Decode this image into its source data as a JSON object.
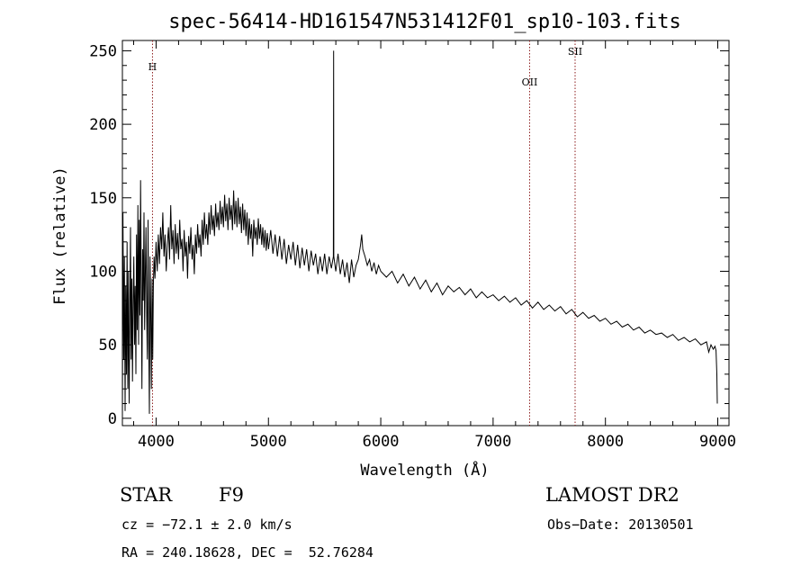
{
  "chart_data": {
    "type": "line",
    "title": "spec-56414-HD161547N531412F01_sp10-103.fits",
    "xlabel": "Wavelength (Å)",
    "ylabel": "Flux (relative)",
    "xlim": [
      3700,
      9100
    ],
    "ylim": [
      -5,
      257
    ],
    "x_ticks": [
      4000,
      5000,
      6000,
      7000,
      8000,
      9000
    ],
    "y_ticks": [
      0,
      50,
      100,
      150,
      200,
      250
    ],
    "grid": false,
    "legend": "none",
    "line_color": "#000000",
    "marker_color": "#8b1a1a",
    "spectrum": [
      [
        3700,
        0
      ],
      [
        3705,
        140
      ],
      [
        3712,
        40
      ],
      [
        3718,
        110
      ],
      [
        3724,
        5
      ],
      [
        3730,
        90
      ],
      [
        3736,
        30
      ],
      [
        3742,
        120
      ],
      [
        3748,
        20
      ],
      [
        3754,
        100
      ],
      [
        3760,
        10
      ],
      [
        3766,
        70
      ],
      [
        3772,
        130
      ],
      [
        3778,
        40
      ],
      [
        3784,
        95
      ],
      [
        3790,
        25
      ],
      [
        3796,
        80
      ],
      [
        3802,
        110
      ],
      [
        3808,
        50
      ],
      [
        3814,
        90
      ],
      [
        3820,
        30
      ],
      [
        3826,
        125
      ],
      [
        3832,
        60
      ],
      [
        3838,
        145
      ],
      [
        3844,
        50
      ],
      [
        3850,
        135
      ],
      [
        3856,
        70
      ],
      [
        3862,
        162
      ],
      [
        3868,
        90
      ],
      [
        3874,
        20
      ],
      [
        3880,
        115
      ],
      [
        3886,
        80
      ],
      [
        3892,
        140
      ],
      [
        3898,
        60
      ],
      [
        3904,
        100
      ],
      [
        3910,
        130
      ],
      [
        3916,
        70
      ],
      [
        3922,
        40
      ],
      [
        3928,
        135
      ],
      [
        3934,
        60
      ],
      [
        3940,
        3
      ],
      [
        3946,
        110
      ],
      [
        3952,
        70
      ],
      [
        3958,
        20
      ],
      [
        3964,
        95
      ],
      [
        3970,
        40
      ],
      [
        3976,
        90
      ],
      [
        3982,
        110
      ],
      [
        3990,
        95
      ],
      [
        4000,
        120
      ],
      [
        4010,
        100
      ],
      [
        4020,
        125
      ],
      [
        4030,
        105
      ],
      [
        4040,
        130
      ],
      [
        4050,
        115
      ],
      [
        4060,
        140
      ],
      [
        4070,
        110
      ],
      [
        4080,
        125
      ],
      [
        4090,
        100
      ],
      [
        4100,
        118
      ],
      [
        4110,
        130
      ],
      [
        4120,
        108
      ],
      [
        4130,
        145
      ],
      [
        4140,
        115
      ],
      [
        4150,
        128
      ],
      [
        4160,
        105
      ],
      [
        4170,
        132
      ],
      [
        4180,
        112
      ],
      [
        4190,
        126
      ],
      [
        4200,
        108
      ],
      [
        4210,
        135
      ],
      [
        4220,
        115
      ],
      [
        4230,
        122
      ],
      [
        4240,
        100
      ],
      [
        4250,
        128
      ],
      [
        4260,
        110
      ],
      [
        4270,
        120
      ],
      [
        4280,
        95
      ],
      [
        4290,
        124
      ],
      [
        4300,
        112
      ],
      [
        4310,
        130
      ],
      [
        4320,
        108
      ],
      [
        4330,
        118
      ],
      [
        4340,
        98
      ],
      [
        4350,
        125
      ],
      [
        4360,
        112
      ],
      [
        4370,
        132
      ],
      [
        4380,
        116
      ],
      [
        4390,
        125
      ],
      [
        4400,
        110
      ],
      [
        4410,
        135
      ],
      [
        4420,
        118
      ],
      [
        4430,
        140
      ],
      [
        4440,
        122
      ],
      [
        4450,
        132
      ],
      [
        4460,
        118
      ],
      [
        4470,
        140
      ],
      [
        4480,
        125
      ],
      [
        4490,
        145
      ],
      [
        4500,
        128
      ],
      [
        4510,
        138
      ],
      [
        4520,
        124
      ],
      [
        4530,
        146
      ],
      [
        4540,
        130
      ],
      [
        4550,
        140
      ],
      [
        4560,
        128
      ],
      [
        4570,
        148
      ],
      [
        4580,
        132
      ],
      [
        4590,
        144
      ],
      [
        4600,
        130
      ],
      [
        4610,
        152
      ],
      [
        4620,
        134
      ],
      [
        4630,
        146
      ],
      [
        4640,
        128
      ],
      [
        4650,
        150
      ],
      [
        4660,
        135
      ],
      [
        4670,
        145
      ],
      [
        4680,
        128
      ],
      [
        4690,
        155
      ],
      [
        4700,
        132
      ],
      [
        4710,
        148
      ],
      [
        4720,
        130
      ],
      [
        4730,
        150
      ],
      [
        4740,
        132
      ],
      [
        4750,
        144
      ],
      [
        4760,
        126
      ],
      [
        4770,
        146
      ],
      [
        4780,
        128
      ],
      [
        4790,
        142
      ],
      [
        4800,
        124
      ],
      [
        4810,
        140
      ],
      [
        4820,
        118
      ],
      [
        4830,
        136
      ],
      [
        4840,
        122
      ],
      [
        4850,
        132
      ],
      [
        4860,
        110
      ],
      [
        4870,
        135
      ],
      [
        4880,
        122
      ],
      [
        4890,
        130
      ],
      [
        4900,
        118
      ],
      [
        4910,
        136
      ],
      [
        4920,
        122
      ],
      [
        4930,
        132
      ],
      [
        4940,
        118
      ],
      [
        4950,
        130
      ],
      [
        4960,
        116
      ],
      [
        4970,
        128
      ],
      [
        4980,
        114
      ],
      [
        4990,
        126
      ],
      [
        5000,
        115
      ],
      [
        5020,
        128
      ],
      [
        5040,
        112
      ],
      [
        5060,
        125
      ],
      [
        5080,
        110
      ],
      [
        5100,
        124
      ],
      [
        5120,
        108
      ],
      [
        5140,
        122
      ],
      [
        5160,
        105
      ],
      [
        5180,
        118
      ],
      [
        5200,
        108
      ],
      [
        5220,
        120
      ],
      [
        5240,
        104
      ],
      [
        5260,
        118
      ],
      [
        5280,
        102
      ],
      [
        5300,
        116
      ],
      [
        5320,
        104
      ],
      [
        5340,
        115
      ],
      [
        5360,
        100
      ],
      [
        5380,
        114
      ],
      [
        5400,
        104
      ],
      [
        5420,
        112
      ],
      [
        5440,
        98
      ],
      [
        5460,
        110
      ],
      [
        5480,
        100
      ],
      [
        5500,
        112
      ],
      [
        5520,
        98
      ],
      [
        5540,
        110
      ],
      [
        5560,
        102
      ],
      [
        5578,
        110
      ],
      [
        5580,
        250
      ],
      [
        5582,
        110
      ],
      [
        5600,
        100
      ],
      [
        5620,
        112
      ],
      [
        5640,
        98
      ],
      [
        5660,
        108
      ],
      [
        5680,
        96
      ],
      [
        5700,
        106
      ],
      [
        5720,
        92
      ],
      [
        5740,
        108
      ],
      [
        5760,
        96
      ],
      [
        5780,
        104
      ],
      [
        5800,
        108
      ],
      [
        5820,
        118
      ],
      [
        5830,
        125
      ],
      [
        5840,
        115
      ],
      [
        5860,
        110
      ],
      [
        5880,
        104
      ],
      [
        5900,
        108
      ],
      [
        5920,
        100
      ],
      [
        5940,
        106
      ],
      [
        5960,
        98
      ],
      [
        5980,
        104
      ],
      [
        6000,
        100
      ],
      [
        6050,
        96
      ],
      [
        6100,
        100
      ],
      [
        6150,
        92
      ],
      [
        6200,
        98
      ],
      [
        6250,
        90
      ],
      [
        6300,
        96
      ],
      [
        6350,
        88
      ],
      [
        6400,
        94
      ],
      [
        6450,
        86
      ],
      [
        6500,
        92
      ],
      [
        6550,
        84
      ],
      [
        6600,
        90
      ],
      [
        6650,
        86
      ],
      [
        6700,
        89
      ],
      [
        6750,
        84
      ],
      [
        6800,
        88
      ],
      [
        6850,
        82
      ],
      [
        6900,
        86
      ],
      [
        6950,
        82
      ],
      [
        7000,
        84
      ],
      [
        7050,
        80
      ],
      [
        7100,
        83
      ],
      [
        7150,
        79
      ],
      [
        7200,
        82
      ],
      [
        7250,
        77
      ],
      [
        7300,
        80
      ],
      [
        7350,
        75
      ],
      [
        7400,
        79
      ],
      [
        7450,
        74
      ],
      [
        7500,
        77
      ],
      [
        7550,
        73
      ],
      [
        7600,
        76
      ],
      [
        7650,
        71
      ],
      [
        7700,
        74
      ],
      [
        7750,
        69
      ],
      [
        7800,
        72
      ],
      [
        7850,
        68
      ],
      [
        7900,
        70
      ],
      [
        7950,
        66
      ],
      [
        8000,
        68
      ],
      [
        8050,
        64
      ],
      [
        8100,
        66
      ],
      [
        8150,
        62
      ],
      [
        8200,
        64
      ],
      [
        8250,
        60
      ],
      [
        8300,
        62
      ],
      [
        8350,
        58
      ],
      [
        8400,
        60
      ],
      [
        8450,
        57
      ],
      [
        8500,
        58
      ],
      [
        8550,
        55
      ],
      [
        8600,
        57
      ],
      [
        8650,
        53
      ],
      [
        8700,
        55
      ],
      [
        8750,
        52
      ],
      [
        8800,
        54
      ],
      [
        8850,
        50
      ],
      [
        8900,
        52
      ],
      [
        8920,
        45
      ],
      [
        8940,
        50
      ],
      [
        8960,
        47
      ],
      [
        8975,
        49
      ],
      [
        8985,
        46
      ],
      [
        8992,
        30
      ],
      [
        8996,
        10
      ]
    ],
    "lines": [
      {
        "label": "H",
        "wavelength": 3968
      },
      {
        "label": "OII",
        "wavelength": 7325
      },
      {
        "label": "SII",
        "wavelength": 7730
      }
    ]
  },
  "info": {
    "class": "STAR",
    "subclass": "F9",
    "survey": "LAMOST DR2",
    "cz": "cz = −72.1 ± 2.0 km/s",
    "obs_date": "Obs−Date: 20130501",
    "coords": "RA = 240.18628, DEC =  52.76284"
  }
}
